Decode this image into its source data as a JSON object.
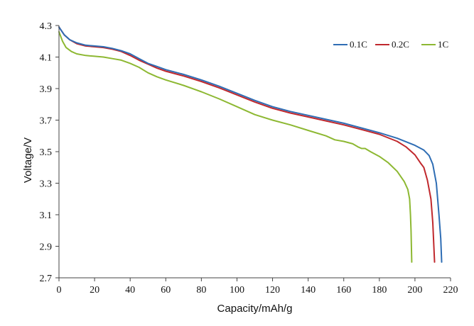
{
  "chart_data": {
    "type": "line",
    "title": "",
    "xlabel": "Capacity/mAh/g",
    "ylabel": "Voltage/V",
    "xlim": [
      0,
      220
    ],
    "ylim": [
      2.7,
      4.3
    ],
    "x_ticks": [
      "0",
      "20",
      "40",
      "60",
      "80",
      "100",
      "120",
      "140",
      "160",
      "180",
      "200",
      "220"
    ],
    "y_ticks": [
      "4.3",
      "4.1",
      "3.9",
      "3.7",
      "3.5",
      "3.3",
      "3.1",
      "2.9",
      "2.7"
    ],
    "grid": false,
    "legend_position": "top-right",
    "series": [
      {
        "name": "0.1C",
        "color": "#2e6db4",
        "points": [
          [
            0,
            4.29
          ],
          [
            3,
            4.24
          ],
          [
            6,
            4.21
          ],
          [
            10,
            4.19
          ],
          [
            15,
            4.175
          ],
          [
            20,
            4.17
          ],
          [
            25,
            4.165
          ],
          [
            30,
            4.155
          ],
          [
            35,
            4.14
          ],
          [
            40,
            4.12
          ],
          [
            45,
            4.09
          ],
          [
            50,
            4.06
          ],
          [
            55,
            4.04
          ],
          [
            60,
            4.02
          ],
          [
            70,
            3.99
          ],
          [
            80,
            3.955
          ],
          [
            90,
            3.915
          ],
          [
            100,
            3.87
          ],
          [
            110,
            3.825
          ],
          [
            120,
            3.785
          ],
          [
            130,
            3.755
          ],
          [
            140,
            3.73
          ],
          [
            150,
            3.705
          ],
          [
            160,
            3.68
          ],
          [
            170,
            3.65
          ],
          [
            180,
            3.62
          ],
          [
            190,
            3.585
          ],
          [
            200,
            3.54
          ],
          [
            205,
            3.51
          ],
          [
            208,
            3.475
          ],
          [
            210,
            3.42
          ],
          [
            212,
            3.3
          ],
          [
            213.5,
            3.1
          ],
          [
            214.5,
            2.95
          ],
          [
            215,
            2.8
          ]
        ]
      },
      {
        "name": "0.2C",
        "color": "#c0282d",
        "points": [
          [
            0,
            4.29
          ],
          [
            3,
            4.24
          ],
          [
            6,
            4.21
          ],
          [
            10,
            4.185
          ],
          [
            15,
            4.17
          ],
          [
            20,
            4.165
          ],
          [
            25,
            4.16
          ],
          [
            30,
            4.15
          ],
          [
            35,
            4.135
          ],
          [
            40,
            4.11
          ],
          [
            45,
            4.08
          ],
          [
            50,
            4.055
          ],
          [
            55,
            4.03
          ],
          [
            60,
            4.01
          ],
          [
            70,
            3.98
          ],
          [
            80,
            3.945
          ],
          [
            90,
            3.905
          ],
          [
            100,
            3.86
          ],
          [
            110,
            3.815
          ],
          [
            120,
            3.775
          ],
          [
            130,
            3.745
          ],
          [
            140,
            3.72
          ],
          [
            150,
            3.695
          ],
          [
            160,
            3.67
          ],
          [
            170,
            3.64
          ],
          [
            180,
            3.61
          ],
          [
            190,
            3.565
          ],
          [
            195,
            3.53
          ],
          [
            200,
            3.48
          ],
          [
            203,
            3.43
          ],
          [
            205,
            3.4
          ],
          [
            207,
            3.32
          ],
          [
            209,
            3.2
          ],
          [
            210,
            3.05
          ],
          [
            211,
            2.8
          ]
        ]
      },
      {
        "name": "1C",
        "color": "#8db832",
        "points": [
          [
            0,
            4.26
          ],
          [
            2,
            4.2
          ],
          [
            4,
            4.16
          ],
          [
            7,
            4.135
          ],
          [
            10,
            4.12
          ],
          [
            15,
            4.11
          ],
          [
            20,
            4.105
          ],
          [
            25,
            4.1
          ],
          [
            30,
            4.09
          ],
          [
            35,
            4.08
          ],
          [
            40,
            4.06
          ],
          [
            45,
            4.035
          ],
          [
            50,
            4.0
          ],
          [
            55,
            3.975
          ],
          [
            60,
            3.955
          ],
          [
            70,
            3.92
          ],
          [
            80,
            3.88
          ],
          [
            90,
            3.835
          ],
          [
            100,
            3.785
          ],
          [
            110,
            3.735
          ],
          [
            120,
            3.7
          ],
          [
            130,
            3.67
          ],
          [
            140,
            3.635
          ],
          [
            150,
            3.6
          ],
          [
            155,
            3.575
          ],
          [
            160,
            3.565
          ],
          [
            165,
            3.55
          ],
          [
            168,
            3.53
          ],
          [
            170,
            3.52
          ],
          [
            172,
            3.52
          ],
          [
            175,
            3.5
          ],
          [
            180,
            3.47
          ],
          [
            185,
            3.43
          ],
          [
            190,
            3.375
          ],
          [
            194,
            3.31
          ],
          [
            196,
            3.26
          ],
          [
            197,
            3.2
          ],
          [
            197.5,
            3.1
          ],
          [
            197.8,
            3.0
          ],
          [
            198,
            2.9
          ],
          [
            198.2,
            2.8
          ]
        ]
      }
    ]
  }
}
